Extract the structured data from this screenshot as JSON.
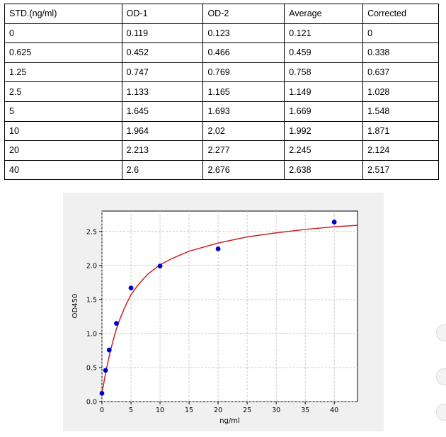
{
  "table": {
    "headers": [
      "STD.(ng/ml)",
      "OD-1",
      "OD-2",
      "Average",
      "Corrected"
    ],
    "rows": [
      [
        "0",
        "0.119",
        "0.123",
        "0.121",
        "0"
      ],
      [
        "0.625",
        "0.452",
        "0.466",
        "0.459",
        "0.338"
      ],
      [
        "1.25",
        "0.747",
        "0.769",
        "0.758",
        "0.637"
      ],
      [
        "2.5",
        "1.133",
        "1.165",
        "1.149",
        "1.028"
      ],
      [
        "5",
        "1.645",
        "1.693",
        "1.669",
        "1.548"
      ],
      [
        "10",
        "1.964",
        "2.02",
        "1.992",
        "1.871"
      ],
      [
        "20",
        "2.213",
        "2.277",
        "2.245",
        "2.124"
      ],
      [
        "40",
        "2.6",
        "2.676",
        "2.638",
        "2.517"
      ]
    ]
  },
  "chart_data": {
    "type": "scatter",
    "title": "",
    "xlabel": "ng/ml",
    "ylabel": "OD450",
    "xlim": [
      0,
      44
    ],
    "ylim": [
      0,
      2.8
    ],
    "xticks": [
      0,
      5,
      10,
      15,
      20,
      25,
      30,
      35,
      40
    ],
    "yticks": [
      0.0,
      0.5,
      1.0,
      1.5,
      2.0,
      2.5
    ],
    "xtick_labels": [
      "0",
      "5",
      "10",
      "15",
      "20",
      "25",
      "30",
      "35",
      "40"
    ],
    "ytick_labels": [
      "0.0",
      "0.5",
      "1.0",
      "1.5",
      "2.0",
      "2.5"
    ],
    "grid": true,
    "series": [
      {
        "type": "scatter",
        "x": [
          0,
          0.625,
          1.25,
          2.5,
          5,
          10,
          20,
          40
        ],
        "y": [
          0.121,
          0.459,
          0.758,
          1.149,
          1.669,
          1.992,
          2.245,
          2.638
        ],
        "color": "#0000cc"
      },
      {
        "type": "line",
        "x": [
          0,
          0.25,
          0.5,
          0.75,
          1,
          1.5,
          2,
          2.5,
          3,
          4,
          5,
          6,
          7,
          8,
          10,
          12,
          15,
          20,
          25,
          30,
          35,
          40,
          44
        ],
        "y": [
          0.12,
          0.24,
          0.36,
          0.47,
          0.57,
          0.76,
          0.92,
          1.07,
          1.19,
          1.4,
          1.57,
          1.69,
          1.79,
          1.88,
          2.01,
          2.1,
          2.21,
          2.33,
          2.42,
          2.48,
          2.53,
          2.57,
          2.59
        ],
        "color": "#cc2222"
      }
    ]
  },
  "colors": {
    "point": "#0000cc",
    "curve": "#cc2222",
    "grid": "#bdbdbd"
  }
}
